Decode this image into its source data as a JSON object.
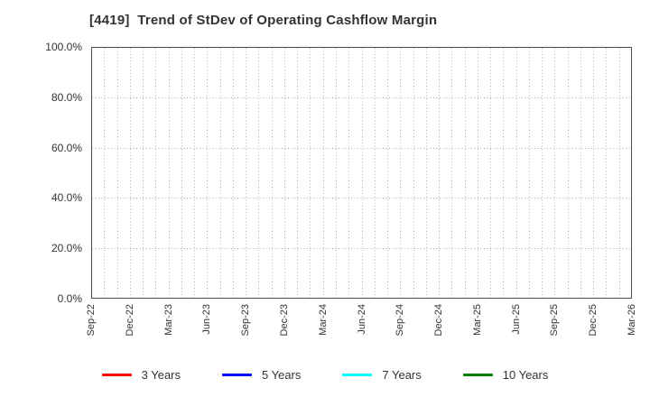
{
  "chart_data": {
    "type": "line",
    "title": "[4419]  Trend of StDev of Operating Cashflow Margin",
    "x_axis": {
      "tick_labels": [
        "Sep-22",
        "Dec-22",
        "Mar-23",
        "Jun-23",
        "Sep-23",
        "Dec-23",
        "Mar-24",
        "Jun-24",
        "Sep-24",
        "Dec-24",
        "Mar-25",
        "Jun-25",
        "Sep-25",
        "Dec-25",
        "Mar-26"
      ],
      "months_between_labeled_ticks": 3,
      "total_month_intervals": 42,
      "minor_gridlines": "monthly"
    },
    "y_axis": {
      "tick_labels": [
        "0.0%",
        "20.0%",
        "40.0%",
        "60.0%",
        "80.0%",
        "100.0%"
      ],
      "min": 0,
      "max": 100,
      "unit": "%"
    },
    "grid": true,
    "grid_style": "dotted",
    "legend_position": "bottom",
    "series": [
      {
        "name": "3 Years",
        "color": "#ff0000",
        "values": []
      },
      {
        "name": "5 Years",
        "color": "#0000ff",
        "values": []
      },
      {
        "name": "7 Years",
        "color": "#00ffff",
        "values": []
      },
      {
        "name": "10 Years",
        "color": "#008000",
        "values": []
      }
    ],
    "plot_state": "empty (no data lines drawn)",
    "colors": {
      "frame": "#4d4d4d",
      "gridline": "#b3b3b3",
      "text": "#333333",
      "background": "#ffffff"
    }
  }
}
